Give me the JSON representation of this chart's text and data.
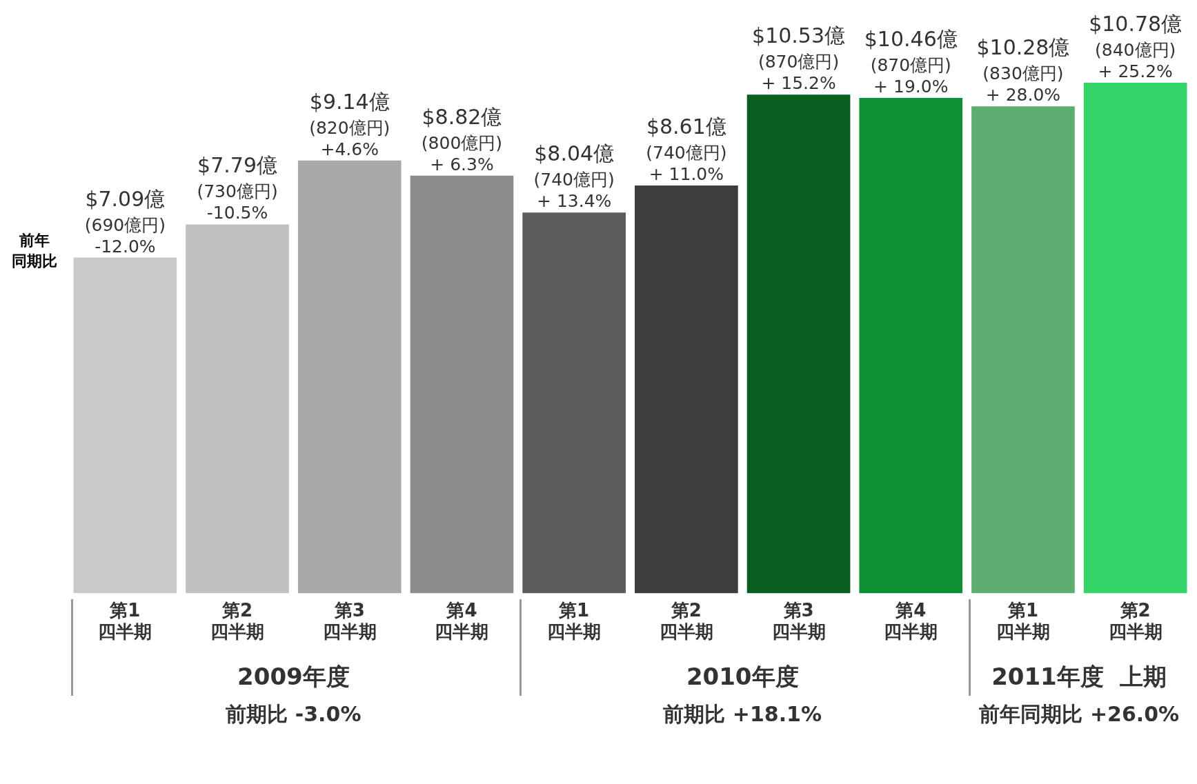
{
  "chart_data": {
    "type": "bar",
    "categories": [
      "第1\n四半期",
      "第2\n四半期",
      "第3\n四半期",
      "第4\n四半期",
      "第1\n四半期",
      "第2\n四半期",
      "第3\n四半期",
      "第4\n四半期",
      "第1\n四半期",
      "第2\n四半期"
    ],
    "values": [
      7.09,
      7.79,
      9.14,
      8.82,
      8.04,
      8.61,
      10.53,
      10.46,
      10.28,
      10.78
    ],
    "colors": [
      "#c9c9c9",
      "#c1c1c1",
      "#a9a9a9",
      "#8c8c8c",
      "#5c5c5c",
      "#3c3c3c",
      "#0b5e22",
      "#0d8f34",
      "#5fae70",
      "#35d466"
    ],
    "value_labels": [
      "$7.09億\n(690億円)\n-12.0%",
      "$7.79億\n(730億円)\n-10.5%",
      "$9.14億\n(820億円)\n+4.6%",
      "$8.82億\n(800億円)\n+ 6.3%",
      "$8.04億\n(740億円)\n+ 13.4%",
      "$8.61億\n(740億円)\n+ 11.0%",
      "$10.53億\n(870億円)\n+ 15.2%",
      "$10.46億\n(870億円)\n+ 19.0%",
      "$10.28億\n(830億円)\n+ 28.0%",
      "$10.78億\n(840億円)\n+ 25.2%"
    ],
    "annotations": [
      "前年同期比",
      "2009年度",
      "前期比 -3.0%",
      "2010年度",
      "前期比 +18.1%",
      "2011年度  上期",
      "前年同期比 +26.0%"
    ],
    "legend": false,
    "grid": false
  }
}
